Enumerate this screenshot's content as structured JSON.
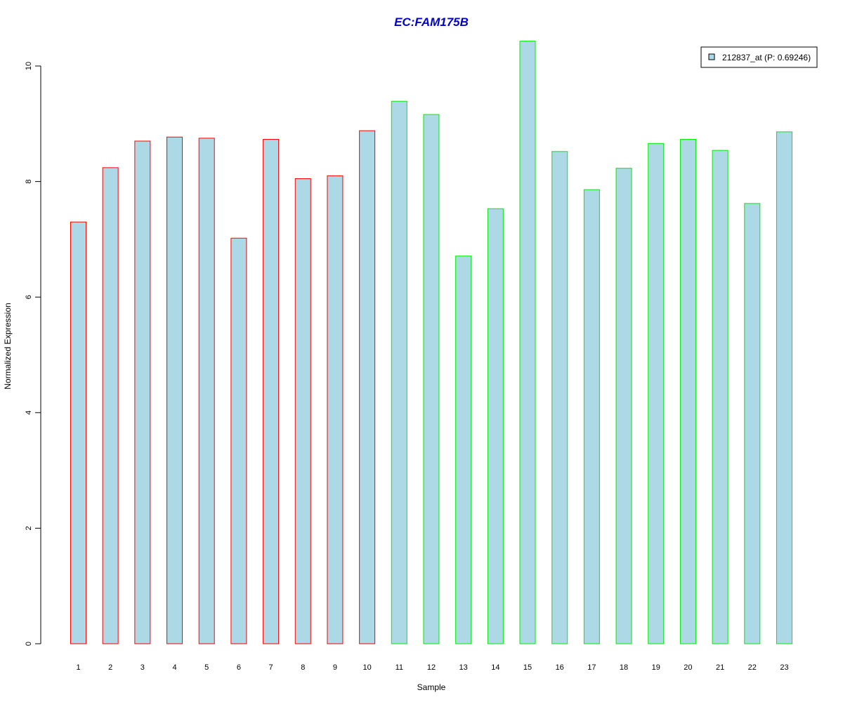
{
  "chart_data": {
    "type": "bar",
    "title": "EC:FAM175B",
    "xlabel": "Sample",
    "ylabel": "Normalized Expression",
    "categories": [
      "1",
      "2",
      "3",
      "4",
      "5",
      "6",
      "7",
      "8",
      "9",
      "10",
      "11",
      "12",
      "13",
      "14",
      "15",
      "16",
      "17",
      "18",
      "19",
      "20",
      "21",
      "22",
      "23"
    ],
    "series": [
      {
        "name": "212837_at (P: 0.69246)",
        "values": [
          7.3,
          8.24,
          8.7,
          8.77,
          8.75,
          7.02,
          8.73,
          8.05,
          8.1,
          8.88,
          9.39,
          9.16,
          6.71,
          7.53,
          10.43,
          8.52,
          7.86,
          8.23,
          8.66,
          8.73,
          8.54,
          7.62,
          8.86
        ]
      }
    ],
    "group_colors": [
      "#ff0000",
      "#ff0000",
      "#ff0000",
      "#ff0000",
      "#ff0000",
      "#ff0000",
      "#ff0000",
      "#ff0000",
      "#ff0000",
      "#ff0000",
      "#00ee00",
      "#00ee00",
      "#00ee00",
      "#00ee00",
      "#00ee00",
      "#00ee00",
      "#00ee00",
      "#00ee00",
      "#00ee00",
      "#00ee00",
      "#00ee00",
      "#00ee00",
      "#00ee00"
    ],
    "bar_fill": "#add8e6",
    "title_color": "#0000cd",
    "yticks": [
      0,
      2,
      4,
      6,
      8,
      10
    ],
    "ylim": [
      0,
      10.43
    ],
    "grid": false,
    "legend_position": "top-right"
  }
}
